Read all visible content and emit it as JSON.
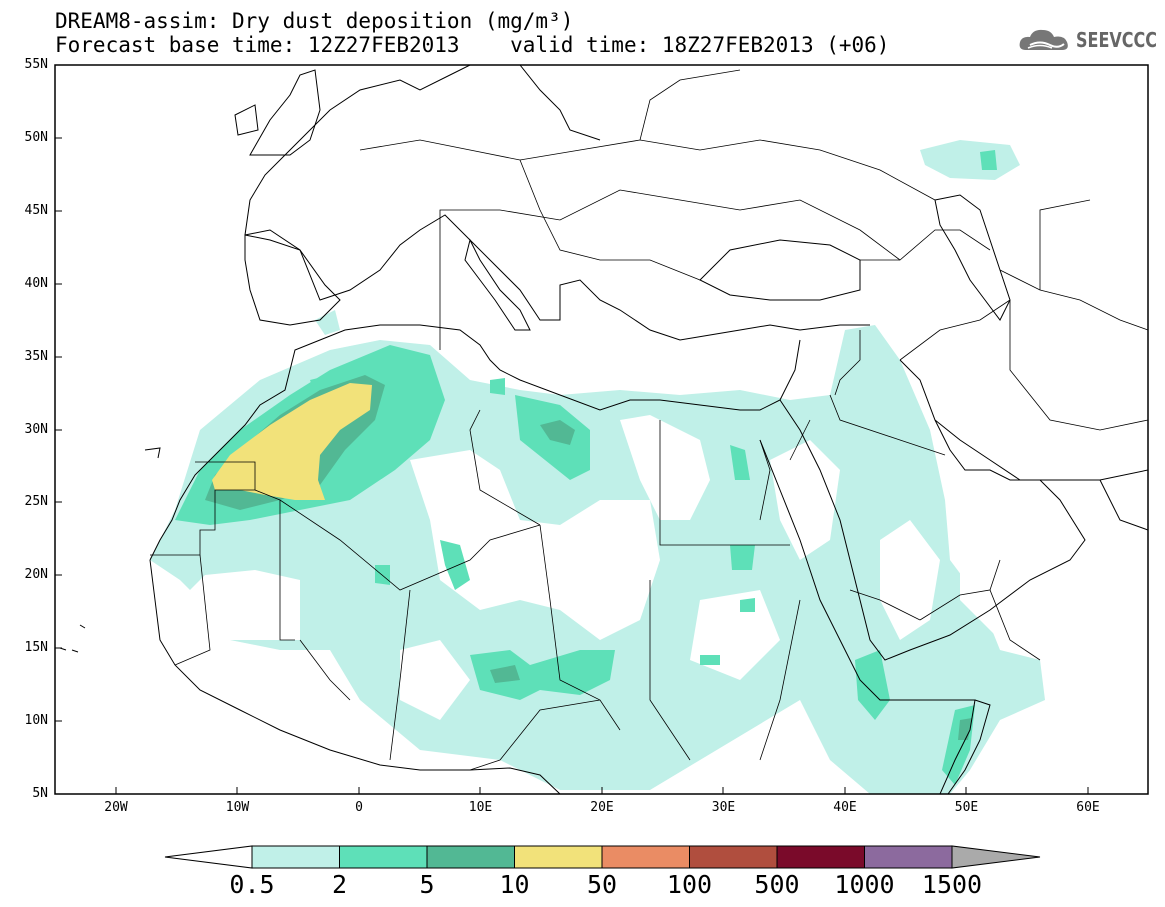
{
  "header": {
    "title_line1": "DREAM8-assim: Dry dust deposition (mg/m³)",
    "title_line2": "Forecast base time: 12Z27FEB2013    valid time: 18Z27FEB2013 (+06)",
    "logo_text": "SEEVCCC"
  },
  "axes": {
    "lat_labels": [
      "55N",
      "50N",
      "45N",
      "40N",
      "35N",
      "30N",
      "25N",
      "20N",
      "15N",
      "10N",
      "5N"
    ],
    "lon_labels": [
      "20W",
      "10W",
      "0",
      "10E",
      "20E",
      "30E",
      "40E",
      "50E",
      "60E"
    ]
  },
  "colorbar": {
    "labels": [
      "0.5",
      "2",
      "5",
      "10",
      "50",
      "100",
      "500",
      "1000",
      "1500"
    ],
    "colors": [
      "#c0f0e8",
      "#5ee0b8",
      "#52b894",
      "#f2e27a",
      "#ea8c64",
      "#b04e3e",
      "#7a0a2a",
      "#8c6a9e"
    ],
    "under_color": "#ffffff",
    "over_color": "#aaaaaa"
  },
  "map": {
    "lon_range": [
      -25,
      65
    ],
    "lat_range": [
      5,
      55
    ],
    "field_colors": {
      "low": "#c0f0e8",
      "mid": "#5ee0b8",
      "high": "#52b894",
      "peak": "#f2e27a"
    }
  }
}
